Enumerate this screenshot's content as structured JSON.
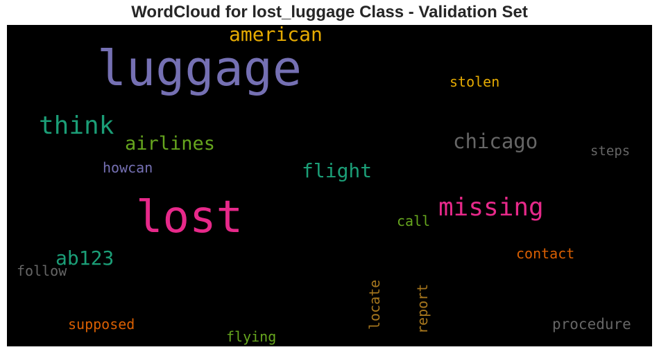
{
  "chart_data": {
    "type": "wordcloud",
    "title": "WordCloud for lost_luggage Class - Validation Set",
    "background": "#000000",
    "words": [
      {
        "text": "luggage",
        "color": "#7570b3",
        "orientation": "horizontal"
      },
      {
        "text": "lost",
        "color": "#e7298a",
        "orientation": "horizontal"
      },
      {
        "text": "missing",
        "color": "#e7298a",
        "orientation": "horizontal"
      },
      {
        "text": "think",
        "color": "#1b9e77",
        "orientation": "horizontal"
      },
      {
        "text": "chicago",
        "color": "#666666",
        "orientation": "horizontal"
      },
      {
        "text": "flight",
        "color": "#1b9e77",
        "orientation": "horizontal"
      },
      {
        "text": "airlines",
        "color": "#66a61e",
        "orientation": "horizontal"
      },
      {
        "text": "american",
        "color": "#e6ab02",
        "orientation": "horizontal"
      },
      {
        "text": "ab123",
        "color": "#1b9e77",
        "orientation": "horizontal"
      },
      {
        "text": "stolen",
        "color": "#e6ab02",
        "orientation": "horizontal"
      },
      {
        "text": "steps",
        "color": "#666666",
        "orientation": "horizontal"
      },
      {
        "text": "howcan",
        "color": "#7570b3",
        "orientation": "horizontal"
      },
      {
        "text": "call",
        "color": "#66a61e",
        "orientation": "horizontal"
      },
      {
        "text": "contact",
        "color": "#d95f02",
        "orientation": "horizontal"
      },
      {
        "text": "follow",
        "color": "#666666",
        "orientation": "horizontal"
      },
      {
        "text": "supposed",
        "color": "#d95f02",
        "orientation": "horizontal"
      },
      {
        "text": "flying",
        "color": "#66a61e",
        "orientation": "horizontal"
      },
      {
        "text": "procedure",
        "color": "#666666",
        "orientation": "horizontal"
      },
      {
        "text": "locate",
        "color": "#a6761d",
        "orientation": "vertical"
      },
      {
        "text": "report",
        "color": "#a6761d",
        "orientation": "vertical"
      }
    ]
  }
}
